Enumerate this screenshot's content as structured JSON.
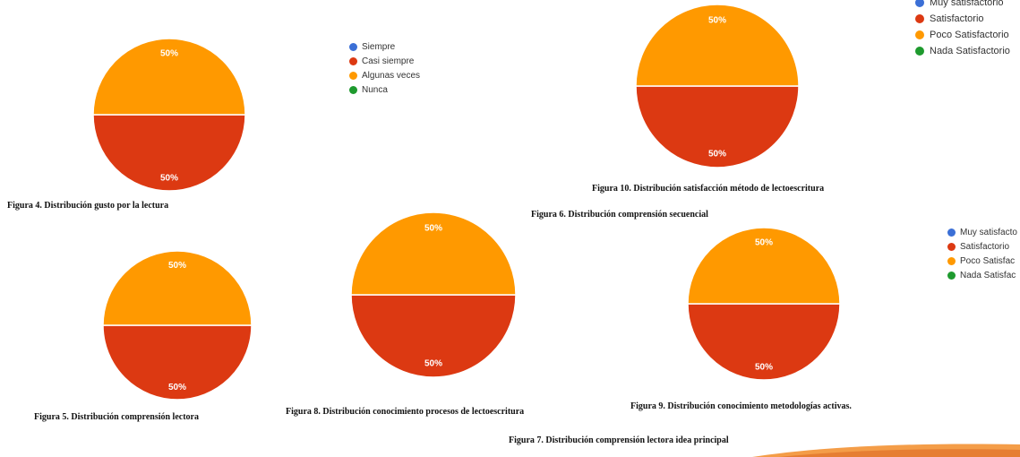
{
  "colors": {
    "blue": "#3b6fd6",
    "red": "#dc3912",
    "orange": "#ff9900",
    "green": "#1e9a2e"
  },
  "legends": {
    "frecuencia": [
      "Siempre",
      "Casi siempre",
      "Algunas veces",
      "Nunca"
    ],
    "satisfaccion_top": [
      "Muy satisfactorio",
      "Satisfactorio",
      "Poco Satisfactorio",
      "Nada Satisfactorio"
    ],
    "satisfaccion_mid": [
      "Muy satisfacto",
      "Satisfactorio",
      "Poco Satisfac",
      "Nada Satisfac"
    ]
  },
  "captions": {
    "fig4": "Figura 4. Distribución gusto por la lectura",
    "fig10": "Figura 10. Distribución satisfacción método de lectoescritura",
    "fig6": "Figura 6. Distribución comprensión secuencial",
    "fig5": "Figura 5. Distribución comprensión lectora",
    "fig8": "Figura 8. Distribución conocimiento procesos de lectoescritura",
    "fig9": "Figura 9. Distribución conocimiento metodologías activas.",
    "fig7": "Figura 7. Distribución comprensión lectora idea principal"
  },
  "chart_data": [
    {
      "type": "pie",
      "caption": "Figura 4. Distribución gusto por la lectura",
      "labels": [
        "Siempre",
        "Casi siempre",
        "Algunas veces",
        "Nunca"
      ],
      "values": [
        0,
        50,
        50,
        0
      ],
      "slice_labels": [
        "",
        "50%",
        "50%",
        ""
      ]
    },
    {
      "type": "pie",
      "caption": "Figura 10. Distribución satisfacción método de lectoescritura",
      "labels": [
        "Muy satisfactorio",
        "Satisfactorio",
        "Poco Satisfactorio",
        "Nada Satisfactorio"
      ],
      "values": [
        0,
        50,
        50,
        0
      ],
      "slice_labels": [
        "",
        "50%",
        "50%",
        ""
      ]
    },
    {
      "type": "pie",
      "caption": "Figura 5. Distribución comprensión lectora",
      "labels": [
        "Siempre",
        "Casi siempre",
        "Algunas veces",
        "Nunca"
      ],
      "values": [
        0,
        50,
        50,
        0
      ],
      "slice_labels": [
        "",
        "50%",
        "50%",
        ""
      ]
    },
    {
      "type": "pie",
      "caption": "Figura 8. Distribución conocimiento procesos de lectoescritura",
      "labels": [
        "Siempre",
        "Casi siempre",
        "Algunas veces",
        "Nunca"
      ],
      "values": [
        0,
        50,
        50,
        0
      ],
      "slice_labels": [
        "",
        "50%",
        "50%",
        ""
      ]
    },
    {
      "type": "pie",
      "caption": "Figura 9. Distribución conocimiento metodologías activas.",
      "labels": [
        "Muy satisfacto",
        "Satisfactorio",
        "Poco Satisfac",
        "Nada Satisfac"
      ],
      "values": [
        0,
        50,
        50,
        0
      ],
      "slice_labels": [
        "",
        "50%",
        "50%",
        ""
      ]
    }
  ]
}
